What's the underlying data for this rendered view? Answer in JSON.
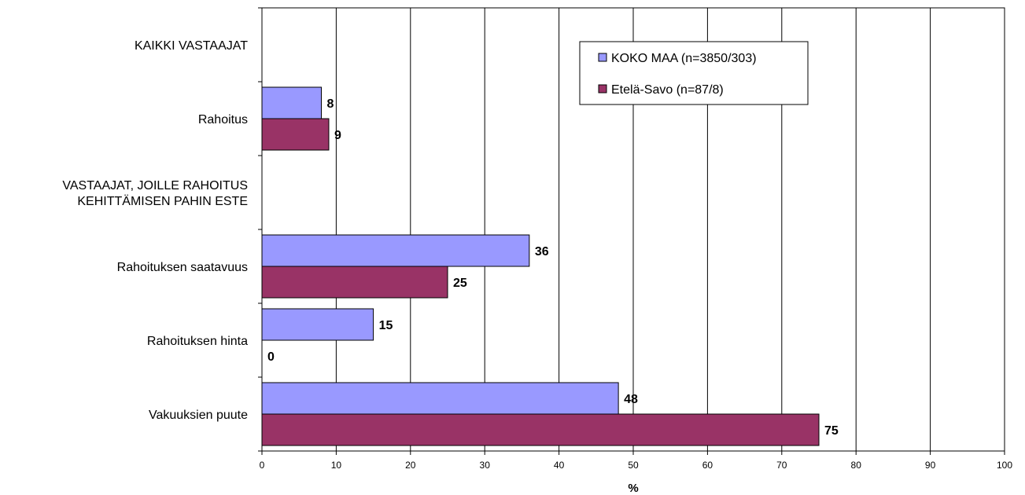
{
  "chart_data": {
    "type": "bar",
    "orientation": "horizontal",
    "categories": [
      "KAIKKI VASTAAJAT",
      "Rahoitus",
      "VASTAAJAT, JOILLE RAHOITUS KEHITTÄMISEN PAHIN ESTE",
      "Rahoituksen saatavuus",
      "Rahoituksen hinta",
      "Vakuuksien puute"
    ],
    "category_lines": [
      [
        "KAIKKI VASTAAJAT"
      ],
      [
        "Rahoitus"
      ],
      [
        "VASTAAJAT, JOILLE RAHOITUS",
        "KEHITTÄMISEN PAHIN ESTE"
      ],
      [
        "Rahoituksen saatavuus"
      ],
      [
        "Rahoituksen hinta"
      ],
      [
        "Vakuuksien puute"
      ]
    ],
    "series": [
      {
        "name": "KOKO MAA (n=3850/303)",
        "color": "#9999ff",
        "values": [
          null,
          8,
          null,
          36,
          15,
          48
        ]
      },
      {
        "name": "Etelä-Savo (n=87/8)",
        "color": "#993366",
        "values": [
          null,
          9,
          null,
          25,
          0,
          75
        ]
      }
    ],
    "xlabel": "%",
    "xlim": [
      0,
      100
    ],
    "xticks": [
      0,
      10,
      20,
      30,
      40,
      50,
      60,
      70,
      80,
      90,
      100
    ],
    "grid": true,
    "legend_position": "top-right"
  }
}
